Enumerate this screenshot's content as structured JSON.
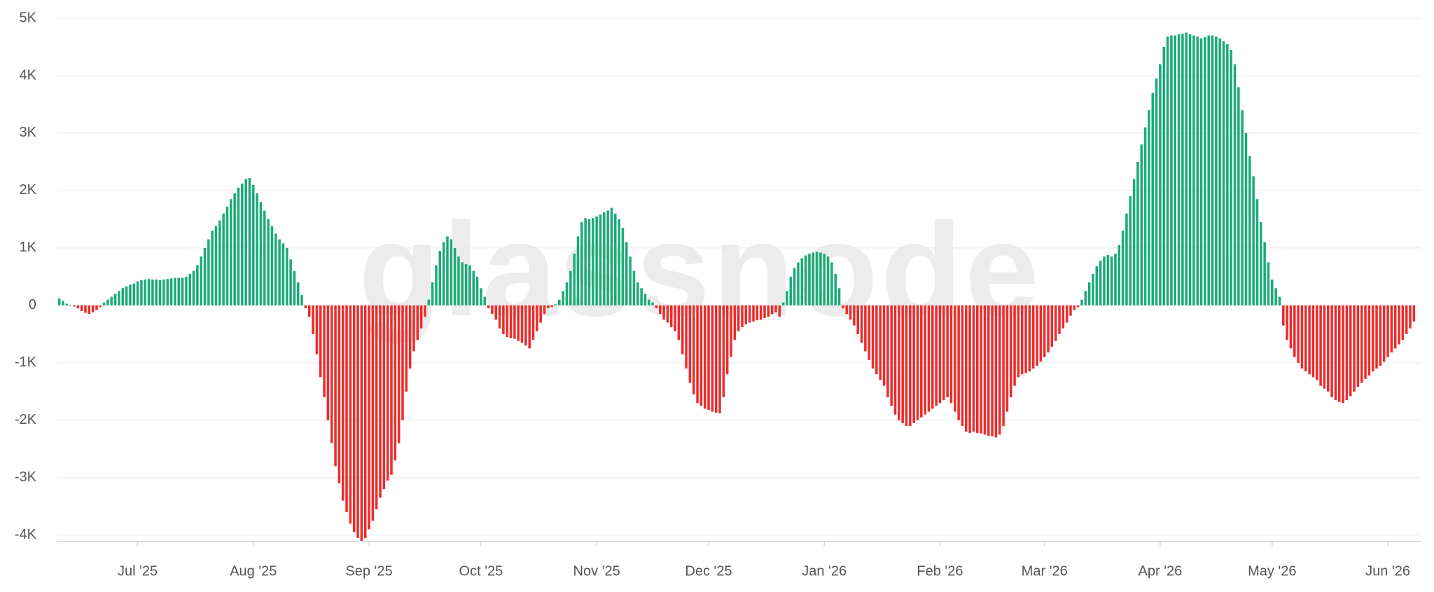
{
  "chart_data": {
    "type": "bar",
    "watermark": "glassnode",
    "positive_color": "#1aab77",
    "negative_color": "#ee2b2b",
    "grid": true,
    "ylim": [
      -4100,
      5000
    ],
    "yticks": [
      {
        "value": -4000,
        "label": "-4K"
      },
      {
        "value": -3000,
        "label": "-3K"
      },
      {
        "value": -2000,
        "label": "-2K"
      },
      {
        "value": -1000,
        "label": "-1K"
      },
      0,
      {
        "value": 1000,
        "label": "1K"
      },
      {
        "value": 2000,
        "label": "2K"
      },
      {
        "value": 3000,
        "label": "3K"
      },
      {
        "value": 4000,
        "label": "4K"
      },
      {
        "value": 5000,
        "label": "5K"
      }
    ],
    "categories": [
      null,
      null,
      null,
      null,
      null,
      null,
      null,
      null,
      null,
      null,
      null,
      null,
      null,
      null,
      null,
      null,
      null,
      null,
      null,
      null,
      null,
      "Jul '25",
      null,
      null,
      null,
      null,
      null,
      null,
      null,
      null,
      null,
      null,
      null,
      null,
      null,
      null,
      null,
      null,
      null,
      null,
      null,
      null,
      null,
      null,
      null,
      null,
      null,
      null,
      null,
      null,
      null,
      null,
      "Aug '25",
      null,
      null,
      null,
      null,
      null,
      null,
      null,
      null,
      null,
      null,
      null,
      null,
      null,
      null,
      null,
      null,
      null,
      null,
      null,
      null,
      null,
      null,
      null,
      null,
      null,
      null,
      null,
      null,
      null,
      null,
      "Sep '25",
      null,
      null,
      null,
      null,
      null,
      null,
      null,
      null,
      null,
      null,
      null,
      null,
      null,
      null,
      null,
      null,
      null,
      null,
      null,
      null,
      null,
      null,
      null,
      null,
      null,
      null,
      null,
      null,
      null,
      "Oct '25",
      null,
      null,
      null,
      null,
      null,
      null,
      null,
      null,
      null,
      null,
      null,
      null,
      null,
      null,
      null,
      null,
      null,
      null,
      null,
      null,
      null,
      null,
      null,
      null,
      null,
      null,
      null,
      null,
      null,
      null,
      "Nov '25",
      null,
      null,
      null,
      null,
      null,
      null,
      null,
      null,
      null,
      null,
      null,
      null,
      null,
      null,
      null,
      null,
      null,
      null,
      null,
      null,
      null,
      null,
      null,
      null,
      null,
      null,
      null,
      null,
      null,
      "Dec '25",
      null,
      null,
      null,
      null,
      null,
      null,
      null,
      null,
      null,
      null,
      null,
      null,
      null,
      null,
      null,
      null,
      null,
      null,
      null,
      null,
      null,
      null,
      null,
      null,
      null,
      null,
      null,
      null,
      null,
      null,
      "Jan '26",
      null,
      null,
      null,
      null,
      null,
      null,
      null,
      null,
      null,
      null,
      null,
      null,
      null,
      null,
      null,
      null,
      null,
      null,
      null,
      null,
      null,
      null,
      null,
      null,
      null,
      null,
      null,
      null,
      null,
      null,
      "Feb '26",
      null,
      null,
      null,
      null,
      null,
      null,
      null,
      null,
      null,
      null,
      null,
      null,
      null,
      null,
      null,
      null,
      null,
      null,
      null,
      null,
      null,
      null,
      null,
      null,
      null,
      null,
      null,
      "Mar '26",
      null,
      null,
      null,
      null,
      null,
      null,
      null,
      null,
      null,
      null,
      null,
      null,
      null,
      null,
      null,
      null,
      null,
      null,
      null,
      null,
      null,
      null,
      null,
      null,
      null,
      null,
      null,
      null,
      null,
      null,
      "Apr '26",
      null,
      null,
      null,
      null,
      null,
      null,
      null,
      null,
      null,
      null,
      null,
      null,
      null,
      null,
      null,
      null,
      null,
      null,
      null,
      null,
      null,
      null,
      null,
      null,
      null,
      null,
      null,
      null,
      null,
      "May '26",
      null,
      null,
      null,
      null,
      null,
      null,
      null,
      null,
      null,
      null,
      null,
      null,
      null,
      null,
      null,
      null,
      null,
      null,
      null,
      null,
      null,
      null,
      null,
      null,
      null,
      null,
      null,
      null,
      null,
      null,
      "Jun '26",
      null,
      null,
      null,
      null,
      null,
      null,
      null
    ],
    "values": [
      120,
      80,
      30,
      10,
      -20,
      -50,
      -100,
      -130,
      -150,
      -120,
      -80,
      -30,
      50,
      100,
      150,
      200,
      250,
      300,
      330,
      360,
      380,
      420,
      440,
      450,
      460,
      450,
      450,
      440,
      450,
      460,
      470,
      480,
      480,
      480,
      500,
      550,
      600,
      700,
      850,
      1000,
      1150,
      1300,
      1380,
      1480,
      1600,
      1720,
      1850,
      1950,
      2050,
      2120,
      2200,
      2220,
      2100,
      1950,
      1800,
      1650,
      1500,
      1380,
      1250,
      1150,
      1080,
      1000,
      800,
      600,
      400,
      180,
      -50,
      -200,
      -500,
      -850,
      -1250,
      -1600,
      -2000,
      -2400,
      -2800,
      -3100,
      -3400,
      -3600,
      -3800,
      -3950,
      -4050,
      -4100,
      -4050,
      -3900,
      -3750,
      -3550,
      -3350,
      -3200,
      -3050,
      -2950,
      -2700,
      -2400,
      -2000,
      -1500,
      -1100,
      -800,
      -600,
      -400,
      -200,
      100,
      400,
      700,
      950,
      1100,
      1200,
      1150,
      1000,
      850,
      750,
      720,
      700,
      600,
      500,
      300,
      150,
      -50,
      -150,
      -250,
      -400,
      -500,
      -550,
      -570,
      -580,
      -620,
      -650,
      -700,
      -750,
      -600,
      -450,
      -300,
      -150,
      -50,
      -30,
      20,
      100,
      250,
      400,
      600,
      900,
      1200,
      1450,
      1520,
      1500,
      1520,
      1550,
      1580,
      1620,
      1650,
      1700,
      1600,
      1500,
      1350,
      1100,
      850,
      600,
      400,
      300,
      200,
      100,
      50,
      -50,
      -150,
      -250,
      -300,
      -380,
      -450,
      -600,
      -850,
      -1100,
      -1350,
      -1550,
      -1700,
      -1750,
      -1800,
      -1820,
      -1850,
      -1870,
      -1880,
      -1600,
      -1200,
      -900,
      -600,
      -450,
      -380,
      -330,
      -300,
      -280,
      -260,
      -250,
      -220,
      -200,
      -150,
      -120,
      -200,
      50,
      250,
      500,
      650,
      750,
      820,
      870,
      900,
      920,
      930,
      920,
      900,
      850,
      750,
      550,
      300,
      -50,
      -150,
      -250,
      -350,
      -500,
      -650,
      -800,
      -950,
      -1100,
      -1200,
      -1300,
      -1400,
      -1600,
      -1750,
      -1900,
      -2000,
      -2050,
      -2100,
      -2100,
      -2050,
      -2000,
      -1950,
      -1900,
      -1850,
      -1800,
      -1750,
      -1700,
      -1650,
      -1600,
      -1700,
      -1850,
      -2000,
      -2100,
      -2200,
      -2220,
      -2200,
      -2220,
      -2230,
      -2250,
      -2270,
      -2280,
      -2300,
      -2250,
      -2100,
      -1850,
      -1600,
      -1400,
      -1250,
      -1200,
      -1180,
      -1150,
      -1100,
      -1050,
      -980,
      -900,
      -820,
      -720,
      -620,
      -500,
      -400,
      -300,
      -180,
      -80,
      -30,
      100,
      250,
      400,
      550,
      680,
      780,
      850,
      880,
      850,
      900,
      1050,
      1300,
      1600,
      1900,
      2200,
      2500,
      2800,
      3100,
      3400,
      3700,
      3950,
      4200,
      4500,
      4680,
      4700,
      4700,
      4720,
      4730,
      4750,
      4720,
      4700,
      4680,
      4650,
      4670,
      4700,
      4700,
      4680,
      4650,
      4600,
      4550,
      4450,
      4200,
      3800,
      3400,
      3000,
      2600,
      2250,
      1850,
      1450,
      1100,
      750,
      450,
      300,
      150,
      -350,
      -600,
      -750,
      -900,
      -1000,
      -1100,
      -1150,
      -1200,
      -1250,
      -1300,
      -1400,
      -1450,
      -1500,
      -1600,
      -1650,
      -1680,
      -1700,
      -1650,
      -1580,
      -1500,
      -1420,
      -1350,
      -1280,
      -1220,
      -1150,
      -1100,
      -1050,
      -980,
      -900,
      -820,
      -750,
      -680,
      -600,
      -500,
      -400,
      -280
    ]
  }
}
